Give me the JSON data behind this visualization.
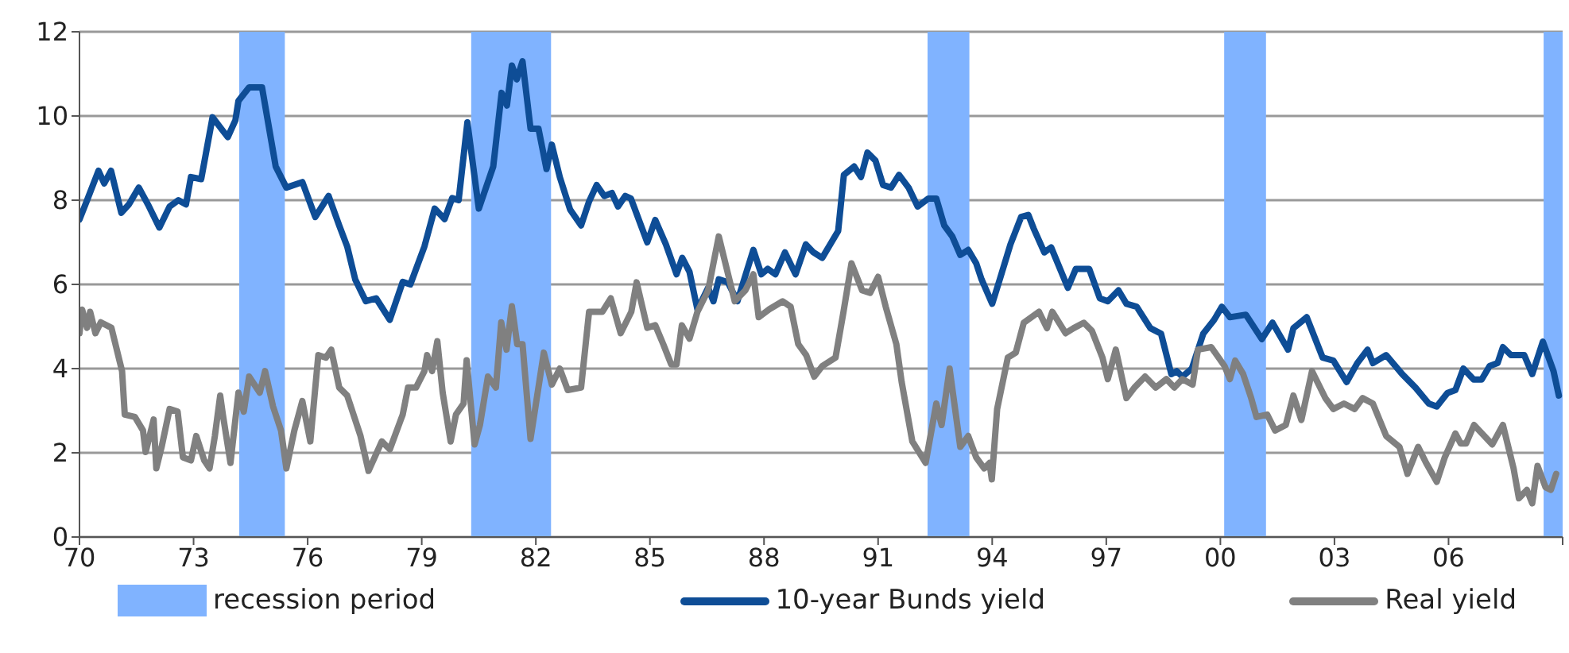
{
  "chart_data": {
    "type": "line",
    "xlim": [
      1970,
      2009
    ],
    "xticks": [
      {
        "value": 1970,
        "label": "70"
      },
      {
        "value": 1973,
        "label": "73"
      },
      {
        "value": 1976,
        "label": "76"
      },
      {
        "value": 1979,
        "label": "79"
      },
      {
        "value": 1982,
        "label": "82"
      },
      {
        "value": 1985,
        "label": "85"
      },
      {
        "value": 1988,
        "label": "88"
      },
      {
        "value": 1991,
        "label": "91"
      },
      {
        "value": 1994,
        "label": "94"
      },
      {
        "value": 1997,
        "label": "97"
      },
      {
        "value": 2000,
        "label": "00"
      },
      {
        "value": 2003,
        "label": "03"
      },
      {
        "value": 2006,
        "label": "06"
      },
      {
        "value": 2009,
        "label": null
      }
    ],
    "ylim": [
      0,
      12
    ],
    "yticks": [
      0,
      2,
      4,
      6,
      8,
      10,
      12
    ],
    "grid": "y",
    "legend": "bottom",
    "marker": "none",
    "line_style": "solid",
    "bands": [
      {
        "axis": "x",
        "from": 1974.2,
        "to": 1975.4,
        "label": "recession period",
        "color": "#80b3ff"
      },
      {
        "axis": "x",
        "from": 1980.3,
        "to": 1982.4,
        "color": "#80b3ff"
      },
      {
        "axis": "x",
        "from": 1992.3,
        "to": 1993.4,
        "color": "#80b3ff"
      },
      {
        "axis": "x",
        "from": 2000.1,
        "to": 2001.2,
        "color": "#80b3ff"
      },
      {
        "axis": "x",
        "from": 2008.5,
        "to": 2009,
        "color": "#80b3ff"
      }
    ],
    "series": [
      {
        "name": "10-year Bunds yield",
        "color": "#0e4d96",
        "x": [
          1970.0,
          1970.2,
          1970.5,
          1970.65,
          1970.83,
          1971.1,
          1971.3,
          1971.56,
          1971.8,
          1972.1,
          1972.37,
          1972.6,
          1972.8,
          1972.93,
          1973.2,
          1973.5,
          1973.77,
          1973.9,
          1974.1,
          1974.18,
          1974.46,
          1974.8,
          1975.16,
          1975.44,
          1975.86,
          1976.2,
          1976.55,
          1976.83,
          1977.04,
          1977.25,
          1977.53,
          1977.8,
          1978.16,
          1978.5,
          1978.7,
          1979.07,
          1979.34,
          1979.6,
          1979.8,
          1979.97,
          1980.2,
          1980.5,
          1980.88,
          1981.1,
          1981.24,
          1981.37,
          1981.5,
          1981.65,
          1981.86,
          1982.07,
          1982.28,
          1982.42,
          1982.63,
          1982.9,
          1983.19,
          1983.4,
          1983.6,
          1983.8,
          1984.0,
          1984.16,
          1984.35,
          1984.5,
          1984.93,
          1985.14,
          1985.42,
          1985.7,
          1985.85,
          1986.04,
          1986.25,
          1986.53,
          1986.67,
          1986.81,
          1987.05,
          1987.3,
          1987.72,
          1987.93,
          1988.1,
          1988.3,
          1988.55,
          1988.83,
          1989.1,
          1989.3,
          1989.53,
          1989.95,
          1990.1,
          1990.37,
          1990.55,
          1990.72,
          1990.93,
          1991.13,
          1991.34,
          1991.55,
          1991.8,
          1992.04,
          1992.32,
          1992.53,
          1992.74,
          1992.95,
          1993.16,
          1993.37,
          1993.58,
          1993.72,
          1994.0,
          1994.2,
          1994.48,
          1994.76,
          1994.95,
          1995.09,
          1995.37,
          1995.55,
          1995.99,
          1996.2,
          1996.55,
          1996.83,
          1997.04,
          1997.32,
          1997.53,
          1997.8,
          1998.16,
          1998.44,
          1998.71,
          1998.85,
          1999.0,
          1999.25,
          1999.55,
          1999.83,
          2000.04,
          2000.25,
          2000.67,
          2001.09,
          2001.37,
          2001.78,
          2001.92,
          2002.27,
          2002.69,
          2002.97,
          2003.32,
          2003.6,
          2003.87,
          2004.01,
          2004.36,
          2004.78,
          2005.13,
          2005.48,
          2005.69,
          2005.97,
          2006.18,
          2006.39,
          2006.66,
          2006.87,
          2007.08,
          2007.29,
          2007.43,
          2007.64,
          2007.99,
          2008.2,
          2008.48,
          2008.76,
          2008.9
        ],
        "values": [
          7.54,
          8.0,
          8.7,
          8.4,
          8.7,
          7.7,
          7.9,
          8.3,
          7.9,
          7.35,
          7.85,
          8.0,
          7.9,
          8.55,
          8.5,
          9.97,
          9.65,
          9.5,
          9.9,
          10.36,
          10.68,
          10.68,
          8.8,
          8.3,
          8.43,
          7.6,
          8.1,
          7.4,
          6.9,
          6.12,
          5.6,
          5.67,
          5.16,
          6.06,
          6.0,
          6.9,
          7.8,
          7.55,
          8.05,
          8.0,
          9.85,
          7.8,
          8.8,
          10.55,
          10.25,
          11.2,
          10.87,
          11.3,
          9.7,
          9.7,
          8.74,
          9.32,
          8.55,
          7.78,
          7.4,
          7.97,
          8.36,
          8.1,
          8.17,
          7.85,
          8.1,
          8.04,
          7.0,
          7.53,
          6.95,
          6.24,
          6.63,
          6.3,
          5.4,
          5.92,
          5.6,
          6.12,
          6.05,
          5.6,
          6.82,
          6.24,
          6.37,
          6.24,
          6.76,
          6.24,
          6.95,
          6.76,
          6.63,
          7.27,
          8.6,
          8.8,
          8.55,
          9.13,
          8.94,
          8.36,
          8.3,
          8.6,
          8.3,
          7.85,
          8.04,
          8.04,
          7.4,
          7.14,
          6.7,
          6.82,
          6.5,
          6.12,
          5.54,
          6.12,
          6.95,
          7.6,
          7.65,
          7.33,
          6.76,
          6.88,
          5.92,
          6.37,
          6.37,
          5.67,
          5.6,
          5.86,
          5.54,
          5.47,
          4.96,
          4.83,
          3.87,
          3.94,
          3.81,
          4.0,
          4.83,
          5.15,
          5.47,
          5.22,
          5.28,
          4.7,
          5.09,
          4.45,
          4.96,
          5.22,
          4.26,
          4.19,
          3.68,
          4.13,
          4.45,
          4.13,
          4.32,
          3.87,
          3.55,
          3.17,
          3.1,
          3.42,
          3.49,
          4.0,
          3.74,
          3.74,
          4.06,
          4.13,
          4.51,
          4.32,
          4.32,
          3.87,
          4.64,
          3.94,
          3.36
        ]
      },
      {
        "name": "Real yield",
        "color": "#808080",
        "x": [
          1970.0,
          1970.07,
          1970.2,
          1970.28,
          1970.42,
          1970.56,
          1970.84,
          1971.12,
          1971.19,
          1971.46,
          1971.67,
          1971.74,
          1971.95,
          1972.02,
          1972.16,
          1972.37,
          1972.58,
          1972.72,
          1972.93,
          1973.07,
          1973.28,
          1973.42,
          1973.56,
          1973.7,
          1973.77,
          1973.97,
          1974.18,
          1974.32,
          1974.46,
          1974.74,
          1974.88,
          1975.09,
          1975.3,
          1975.44,
          1975.65,
          1975.86,
          1976.07,
          1976.28,
          1976.48,
          1976.62,
          1976.83,
          1977.04,
          1977.39,
          1977.6,
          1977.95,
          1978.16,
          1978.5,
          1978.64,
          1978.85,
          1979.07,
          1979.14,
          1979.27,
          1979.41,
          1979.55,
          1979.76,
          1979.9,
          1980.1,
          1980.18,
          1980.39,
          1980.53,
          1980.74,
          1980.95,
          1981.09,
          1981.23,
          1981.37,
          1981.51,
          1981.65,
          1981.86,
          1982.21,
          1982.42,
          1982.63,
          1982.84,
          1983.19,
          1983.4,
          1983.75,
          1983.97,
          1984.23,
          1984.51,
          1984.65,
          1984.93,
          1985.14,
          1985.35,
          1985.56,
          1985.7,
          1985.84,
          1986.04,
          1986.25,
          1986.53,
          1986.81,
          1987.02,
          1987.23,
          1987.51,
          1987.72,
          1987.86,
          1988.14,
          1988.49,
          1988.7,
          1988.9,
          1989.11,
          1989.32,
          1989.53,
          1989.88,
          1990.09,
          1990.3,
          1990.58,
          1990.79,
          1991.0,
          1991.2,
          1991.48,
          1991.62,
          1991.9,
          1992.25,
          1992.53,
          1992.67,
          1992.88,
          1993.16,
          1993.37,
          1993.58,
          1993.79,
          1993.93,
          1993.99,
          1994.13,
          1994.41,
          1994.62,
          1994.83,
          1995.23,
          1995.44,
          1995.58,
          1995.93,
          1996.14,
          1996.41,
          1996.62,
          1996.9,
          1997.04,
          1997.25,
          1997.53,
          1997.74,
          1998.02,
          1998.3,
          1998.58,
          1998.79,
          1999.0,
          1999.27,
          1999.41,
          1999.76,
          2000.11,
          2000.25,
          2000.39,
          2000.6,
          2000.81,
          2000.95,
          2001.23,
          2001.44,
          2001.72,
          2001.92,
          2002.13,
          2002.41,
          2002.76,
          2002.97,
          2003.25,
          2003.53,
          2003.74,
          2004.01,
          2004.36,
          2004.71,
          2004.92,
          2005.2,
          2005.41,
          2005.69,
          2005.9,
          2006.18,
          2006.32,
          2006.46,
          2006.67,
          2006.94,
          2007.15,
          2007.43,
          2007.71,
          2007.85,
          2008.06,
          2008.2,
          2008.34,
          2008.55,
          2008.69,
          2008.83
        ],
        "values": [
          4.84,
          5.4,
          4.97,
          5.35,
          4.84,
          5.1,
          4.97,
          3.94,
          2.91,
          2.85,
          2.53,
          2.02,
          2.79,
          1.63,
          2.14,
          3.04,
          2.98,
          1.89,
          1.82,
          2.4,
          1.82,
          1.63,
          2.4,
          3.36,
          2.91,
          1.76,
          3.43,
          2.98,
          3.81,
          3.43,
          3.94,
          3.1,
          2.53,
          1.63,
          2.53,
          3.23,
          2.27,
          4.32,
          4.26,
          4.45,
          3.55,
          3.36,
          2.4,
          1.57,
          2.27,
          2.08,
          2.91,
          3.55,
          3.55,
          3.94,
          4.32,
          3.94,
          4.65,
          3.43,
          2.27,
          2.91,
          3.17,
          4.2,
          2.2,
          2.66,
          3.81,
          3.55,
          5.1,
          4.45,
          5.48,
          4.58,
          4.58,
          2.33,
          4.38,
          3.62,
          4.0,
          3.49,
          3.55,
          5.35,
          5.35,
          5.67,
          4.84,
          5.35,
          6.05,
          4.97,
          5.03,
          4.58,
          4.1,
          4.1,
          5.03,
          4.71,
          5.35,
          5.86,
          7.14,
          6.37,
          5.6,
          5.86,
          6.24,
          5.22,
          5.41,
          5.6,
          5.47,
          4.58,
          4.32,
          3.81,
          4.06,
          4.26,
          5.35,
          6.5,
          5.86,
          5.8,
          6.18,
          5.47,
          4.58,
          3.68,
          2.27,
          1.76,
          3.17,
          2.66,
          4.0,
          2.14,
          2.4,
          1.89,
          1.63,
          1.76,
          1.37,
          3.04,
          4.26,
          4.38,
          5.09,
          5.35,
          4.96,
          5.35,
          4.84,
          4.96,
          5.09,
          4.9,
          4.26,
          3.75,
          4.45,
          3.3,
          3.55,
          3.81,
          3.55,
          3.75,
          3.55,
          3.75,
          3.62,
          4.45,
          4.51,
          4.06,
          3.75,
          4.19,
          3.87,
          3.3,
          2.85,
          2.91,
          2.53,
          2.66,
          3.36,
          2.78,
          3.94,
          3.3,
          3.04,
          3.17,
          3.04,
          3.3,
          3.17,
          2.4,
          2.14,
          1.5,
          2.14,
          1.76,
          1.31,
          1.89,
          2.46,
          2.22,
          2.22,
          2.66,
          2.4,
          2.2,
          2.66,
          1.63,
          0.92,
          1.12,
          0.8,
          1.69,
          1.18,
          1.12,
          1.5
        ]
      }
    ]
  }
}
